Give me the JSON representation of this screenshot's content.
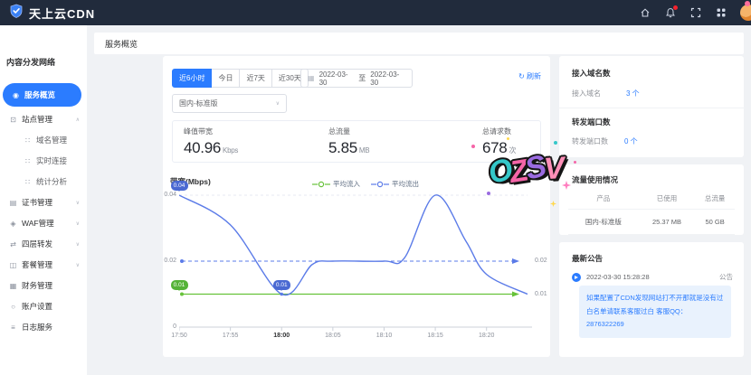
{
  "header": {
    "brand": "天上云CDN",
    "icons": [
      "home-icon",
      "bell-icon",
      "fullscreen-icon",
      "apps-icon",
      "avatar"
    ]
  },
  "sidebar": {
    "title": "内容分发网络",
    "items": [
      {
        "label": "服务概览",
        "icon": "dashboard-icon",
        "active": true
      },
      {
        "label": "站点管理",
        "icon": "site-icon",
        "expanded": true
      },
      {
        "label": "域名管理",
        "icon": "grid-icon"
      },
      {
        "label": "实时连接",
        "icon": "grid-icon"
      },
      {
        "label": "统计分析",
        "icon": "grid-icon"
      },
      {
        "label": "证书管理",
        "icon": "certificate-icon"
      },
      {
        "label": "WAF管理",
        "icon": "waf-shield-icon"
      },
      {
        "label": "四层转发",
        "icon": "forward-icon"
      },
      {
        "label": "套餐管理",
        "icon": "package-icon"
      },
      {
        "label": "财务管理",
        "icon": "finance-icon"
      },
      {
        "label": "账户设置",
        "icon": "account-icon"
      },
      {
        "label": "日志服务",
        "icon": "log-icon"
      }
    ]
  },
  "breadcrumb": "服务概览",
  "filters": {
    "tabs": [
      "近6小时",
      "今日",
      "近7天",
      "近30天"
    ],
    "active_tab": "近6小时",
    "date_start": "2022-03-30",
    "date_separator": "至",
    "date_end": "2022-03-30",
    "refresh_label": "刷新",
    "product_select": "国内-标准版"
  },
  "stats": [
    {
      "label": "峰值带宽",
      "value": "40.96",
      "unit": "Kbps"
    },
    {
      "label": "总流量",
      "value": "5.85",
      "unit": "MB"
    },
    {
      "label": "总请求数",
      "value": "678",
      "unit": "次"
    }
  ],
  "chart_data": {
    "type": "line",
    "title": "带宽(Mbps)",
    "x_ticks": [
      "17:50",
      "17:55",
      "18:00",
      "18:05",
      "18:10",
      "18:15",
      "18:20"
    ],
    "x_tick_minutes": [
      0,
      5,
      10,
      15,
      20,
      25,
      30
    ],
    "bold_x_tick": "18:00",
    "x_axis_max_minutes": 34,
    "y_ticks": [
      "0",
      "0.02",
      "0.04"
    ],
    "ylim": [
      0,
      0.04
    ],
    "grid": "dashed-horizontal",
    "legend_position": "top-center",
    "series": [
      {
        "name": "平均流入",
        "color": "#67c23a",
        "style": "straight-arrow",
        "x_minutes": [
          0,
          34
        ],
        "values": [
          0.01,
          0.01
        ],
        "end_label": "0.01"
      },
      {
        "name": "平均流出",
        "color": "#5b7be8",
        "style": "smooth",
        "x_minutes": [
          0,
          5,
          10,
          13,
          15,
          20,
          22,
          25,
          28,
          30,
          34
        ],
        "values": [
          0.04,
          0.031,
          0.01,
          0.019,
          0.02,
          0.02,
          0.021,
          0.04,
          0.026,
          0.016,
          0.01
        ]
      }
    ],
    "reference_line": {
      "value": 0.02,
      "color": "#5b7be8",
      "style": "dashed-arrow",
      "end_label": "0.02"
    },
    "point_labels": [
      {
        "x_minute": 0,
        "value": 0.04,
        "text": "0.04",
        "color": "#4a69d2"
      },
      {
        "x_minute": 0,
        "value": 0.01,
        "text": "0.01",
        "color": "#55b338"
      },
      {
        "x_minute": 10,
        "value": 0.01,
        "text": "0.01",
        "color": "#4a69d2"
      }
    ]
  },
  "right_panel": {
    "domain_card": {
      "title": "接入域名数",
      "row_label": "接入域名",
      "value": "3 个"
    },
    "port_card": {
      "title": "转发端口数",
      "row_label": "转发端口数",
      "value": "0 个"
    },
    "traffic_card": {
      "title": "流量使用情况",
      "headers": [
        "产品",
        "已使用",
        "总流量"
      ],
      "row": [
        "国内-标准版",
        "25.37 MB",
        "50 GB"
      ]
    },
    "notice_card": {
      "title": "最新公告",
      "time": "2022-03-30 15:28:28",
      "tag": "公告",
      "content": "如果配置了CDN发现网站打不开那就是没有过白名单请联系客服过白 客服QQ：2876322269"
    }
  },
  "watermark": {
    "text": "OZSV"
  },
  "colors": {
    "accent": "#2b7cff",
    "header_bg": "#212b3c",
    "inflow": "#67c23a",
    "outflow": "#5b7be8"
  }
}
